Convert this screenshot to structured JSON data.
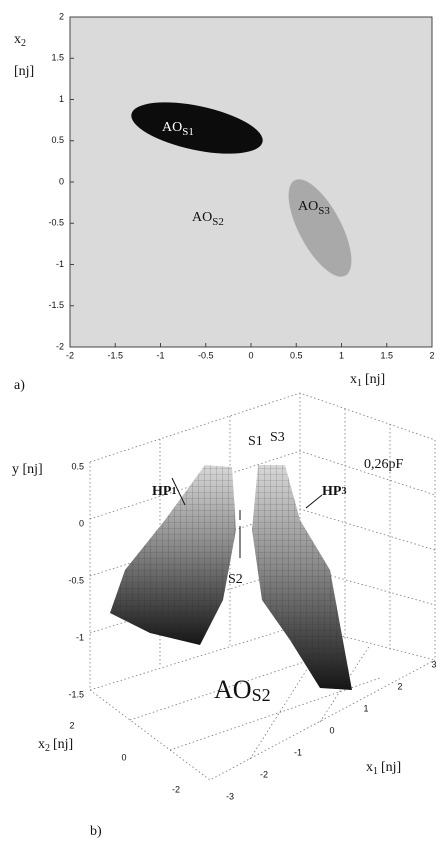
{
  "panel_a": {
    "y_label": {
      "text": "x",
      "sub": "2",
      "unit": "[nj]"
    },
    "x_label": {
      "text": "x",
      "sub": "1",
      "unit": "[nj]"
    },
    "xticks": [
      "-2",
      "-1.5",
      "-1",
      "-0.5",
      "0",
      "0.5",
      "1",
      "1.5",
      "2"
    ],
    "yticks": [
      "2",
      "1.5",
      "1",
      "0.5",
      "0",
      "-0.5",
      "-1",
      "-1.5",
      "-2"
    ],
    "regions": [
      {
        "text": "AO",
        "sub": "S1"
      },
      {
        "text": "AO",
        "sub": "S2"
      },
      {
        "text": "AO",
        "sub": "S3"
      }
    ],
    "caption": "a)"
  },
  "panel_b": {
    "y_label": "y [nj]",
    "x2_label": {
      "text": "x",
      "sub": "2",
      "unit": "[nj]"
    },
    "x1_label": {
      "text": "x",
      "sub": "1",
      "unit": "[nj]"
    },
    "yticks": [
      "0.5",
      "0",
      "-0.5",
      "-1",
      "-1.5"
    ],
    "x2ticks": [
      "2",
      "0",
      "-2"
    ],
    "x1ticks": [
      "-3",
      "-2",
      "-1",
      "0",
      "1",
      "2",
      "3"
    ],
    "points": [
      "S1",
      "S3",
      "S2"
    ],
    "capacitance": "0,26pF",
    "surfaces": [
      {
        "text": "HP",
        "sub": "1"
      },
      {
        "text": "HP",
        "sub": "3"
      }
    ],
    "region": {
      "text": "AO",
      "sub": "S2"
    },
    "caption": "b)"
  }
}
